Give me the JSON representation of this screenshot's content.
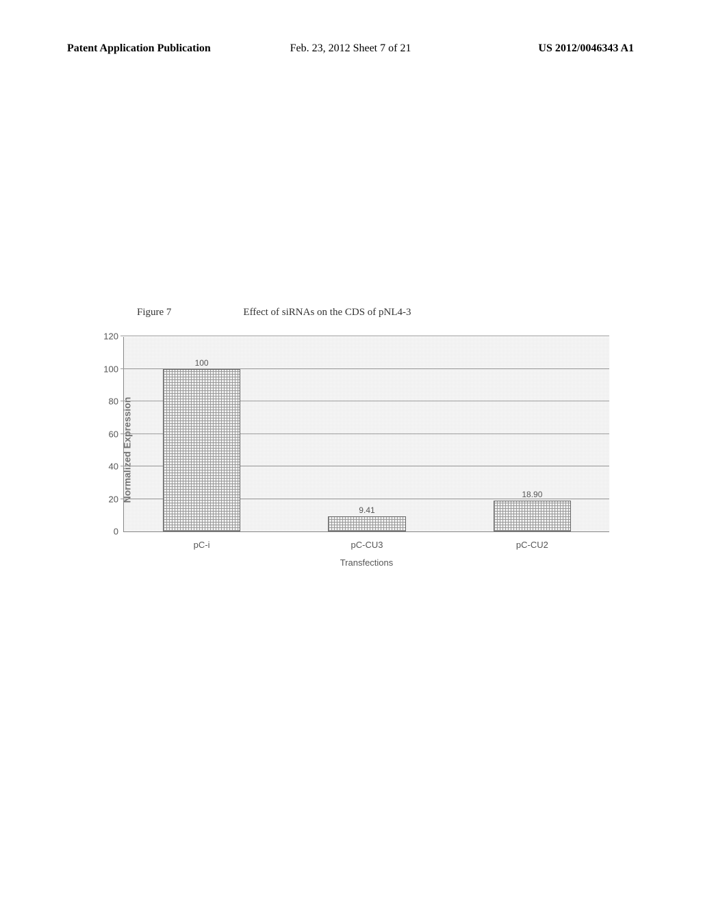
{
  "header": {
    "left": "Patent Application Publication",
    "center": "Feb. 23, 2012  Sheet 7 of 21",
    "right": "US 2012/0046343 A1"
  },
  "figure": {
    "label": "Figure 7",
    "title": "Effect of siRNAs on the CDS of pNL4-3"
  },
  "chart": {
    "type": "bar",
    "y_axis_label": "Normalized Expression",
    "x_axis_label": "Transfections",
    "ylim": [
      0,
      120
    ],
    "ytick_step": 20,
    "yticks": [
      0,
      20,
      40,
      60,
      80,
      100,
      120
    ],
    "categories": [
      "pC-i",
      "pC-CU3",
      "pC-CU2"
    ],
    "values": [
      100,
      9.41,
      18.9
    ],
    "value_labels": [
      "100",
      "9.41",
      "18.90"
    ],
    "bar_width_percent": 16,
    "bar_positions_percent": [
      16,
      50,
      84
    ],
    "background_color": "#ffffff",
    "grid_color": "#999999",
    "bar_fill_color": "#f0f0f0",
    "bar_pattern_color": "#999999",
    "bar_border_color": "#666666",
    "text_color": "#555555",
    "label_fontsize": 13,
    "axis_label_fontsize": 14
  }
}
